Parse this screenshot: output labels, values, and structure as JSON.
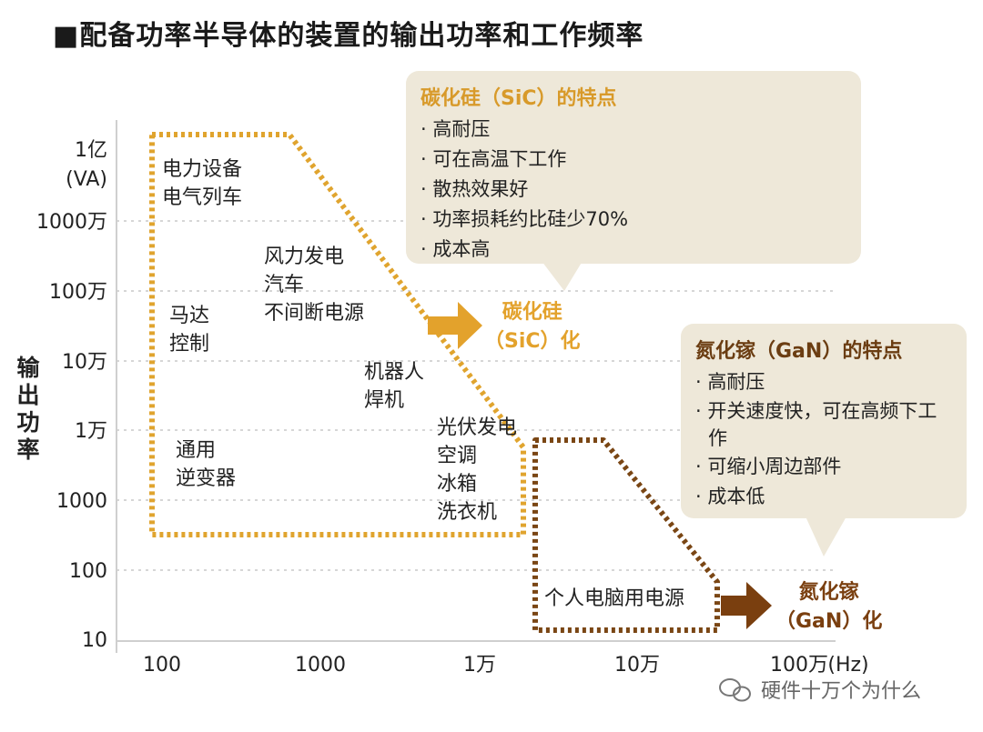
{
  "title": "■配备功率半导体的装置的输出功率和工作频率",
  "y_axis": {
    "title_chars": [
      "输",
      "出",
      "功",
      "率"
    ],
    "ticks": [
      {
        "label": "1亿",
        "sub": "(VA)"
      },
      {
        "label": "1000万"
      },
      {
        "label": "100万"
      },
      {
        "label": "10万"
      },
      {
        "label": "1万"
      },
      {
        "label": "1000"
      },
      {
        "label": "100"
      },
      {
        "label": "10"
      }
    ]
  },
  "x_axis": {
    "ticks": [
      "100",
      "1000",
      "1万",
      "10万",
      "100万"
    ],
    "unit": "(Hz)"
  },
  "regions": {
    "power_equipment": [
      "电力设备",
      "电气列车"
    ],
    "motor_control": [
      "马达",
      "控制"
    ],
    "general_inverter": [
      "通用",
      "逆变器"
    ],
    "wind_car_ups": [
      "风力发电",
      "汽车",
      "不间断电源"
    ],
    "robot_welder": [
      "机器人",
      "焊机"
    ],
    "solar_ac_fridge": [
      "光伏发电",
      "空调",
      "冰箱",
      "洗衣机"
    ],
    "pc_power": "个人电脑用电源"
  },
  "sic": {
    "callout_title": "碳化硅（SiC）的特点",
    "features": [
      "· 高耐压",
      "· 可在高温下工作",
      "· 散热效果好",
      "· 功率损耗约比硅少70%",
      "· 成本高"
    ],
    "arrow_label_line1": "碳化硅",
    "arrow_label_line2": "（SiC）化",
    "color": "#e3a22c"
  },
  "gan": {
    "callout_title": "氮化镓（GaN）的特点",
    "features": [
      "· 高耐压",
      "· 开关速度快，可在高频下工作",
      "· 可缩小周边部件",
      "· 成本低"
    ],
    "arrow_label_line1": "氮化镓",
    "arrow_label_line2": "（GaN）化",
    "color": "#7a3f0f"
  },
  "watermark": "硬件十万个为什么"
}
